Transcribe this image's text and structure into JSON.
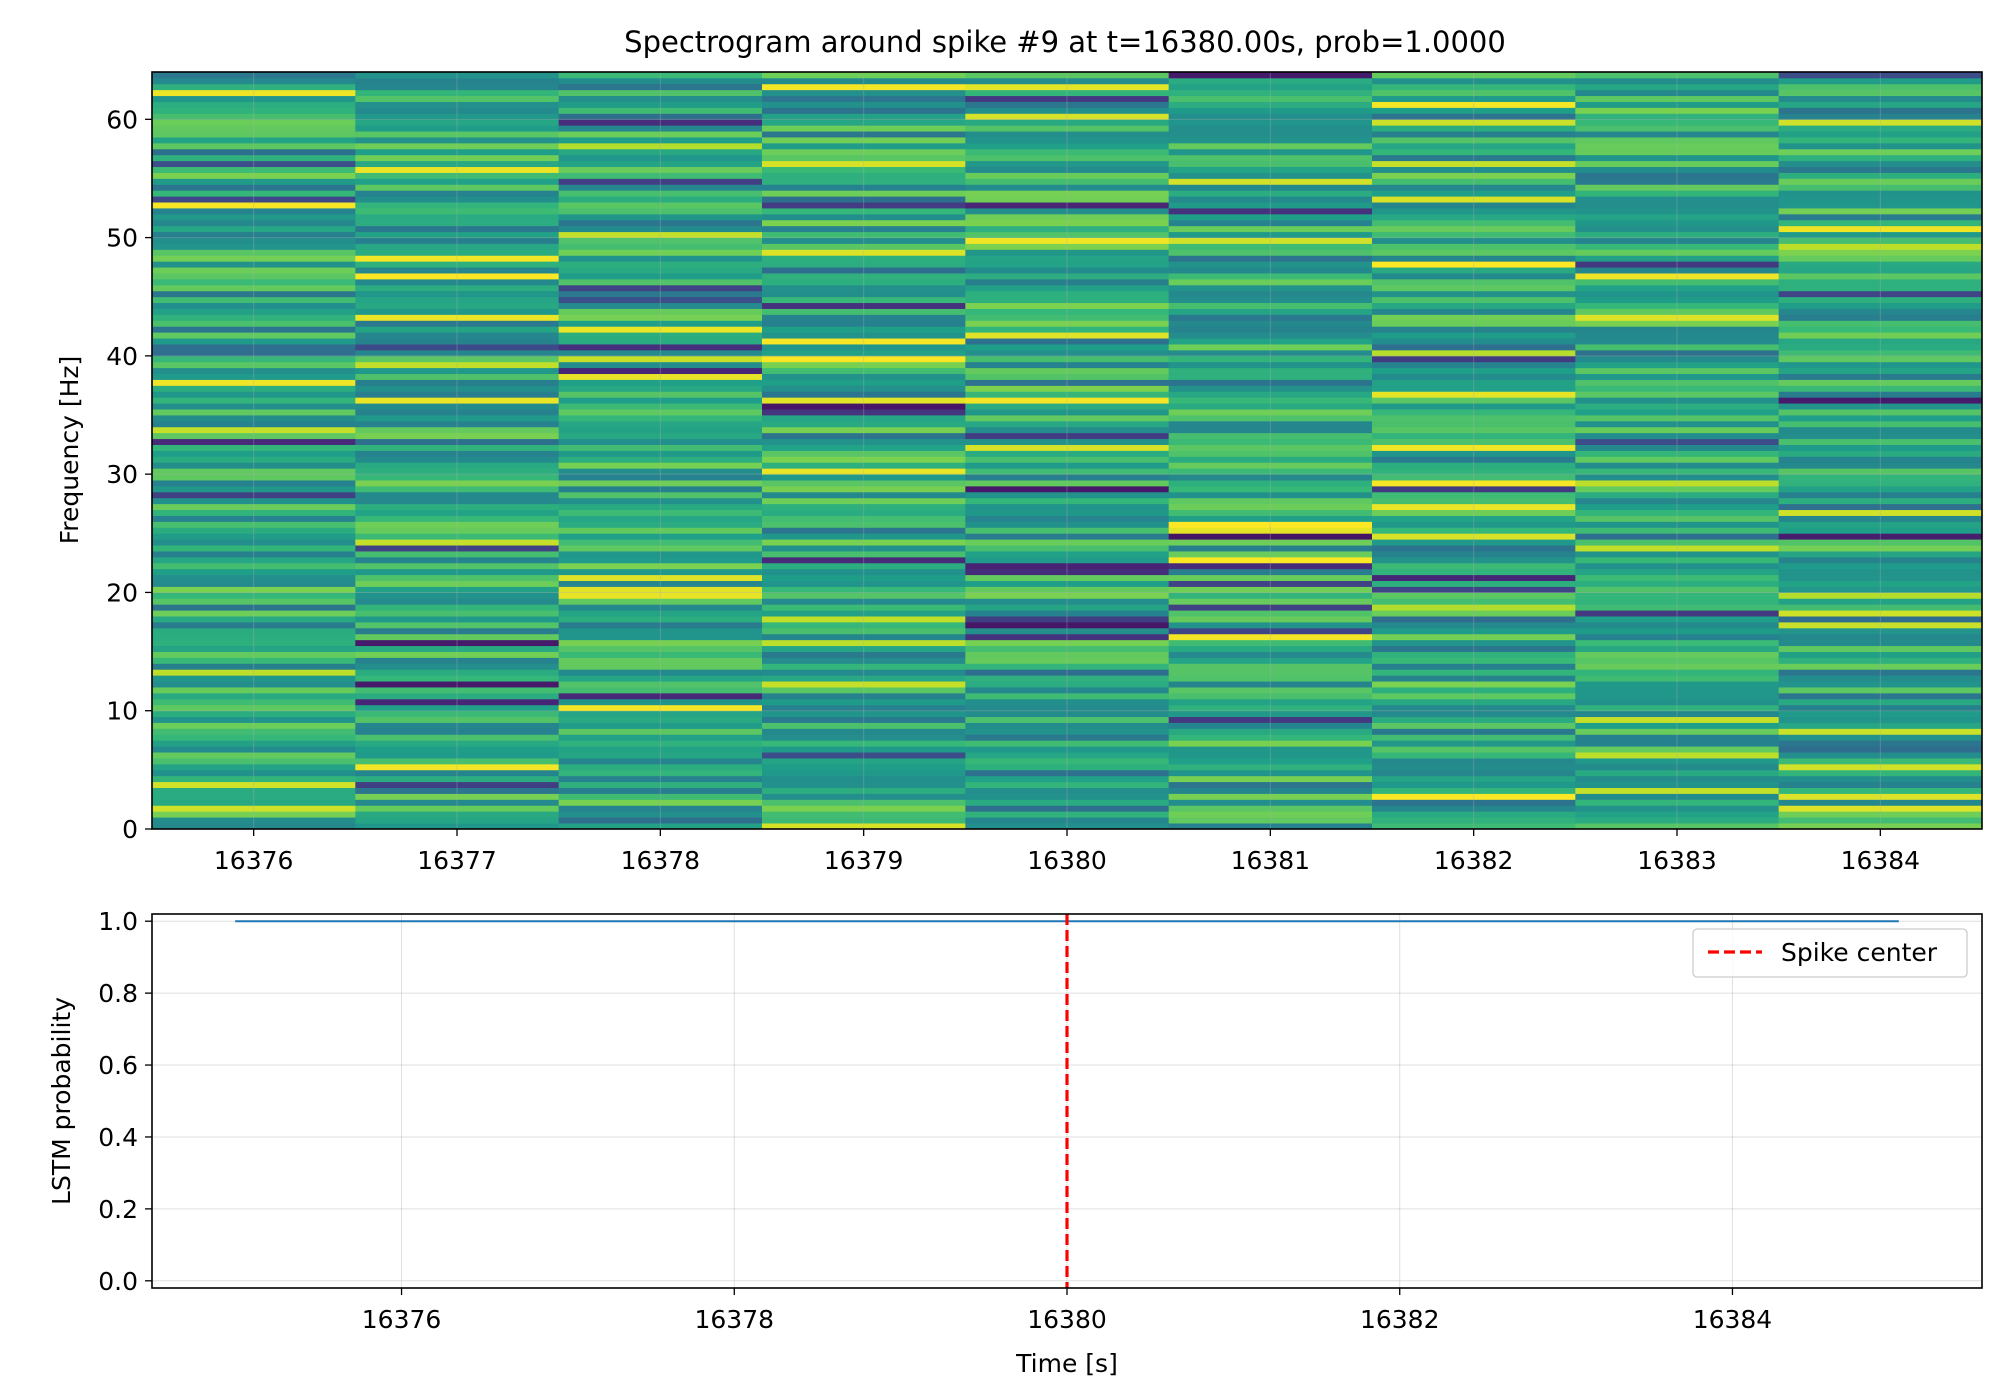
{
  "figure_title": "Spectrogram around spike #9 at t=16380.00s, prob=1.0000",
  "chart_data": [
    {
      "type": "heatmap",
      "ylabel": "Frequency [Hz]",
      "xlim": [
        16375.5,
        16384.5
      ],
      "ylim": [
        0,
        64
      ],
      "x_ticks": [
        "16376",
        "16377",
        "16378",
        "16379",
        "16380",
        "16381",
        "16382",
        "16383",
        "16384"
      ],
      "x_tick_values": [
        16376,
        16377,
        16378,
        16379,
        16380,
        16381,
        16382,
        16383,
        16384
      ],
      "y_ticks": [
        "0",
        "10",
        "20",
        "30",
        "40",
        "50",
        "60"
      ],
      "y_tick_values": [
        0,
        10,
        20,
        30,
        40,
        50,
        60
      ],
      "time_bins": [
        16376,
        16377,
        16378,
        16379,
        16380,
        16381,
        16382,
        16383,
        16384
      ],
      "frequency_bin_width_hz": 0.5,
      "colormap": "viridis",
      "grid": true
    },
    {
      "type": "line",
      "xlabel": "Time [s]",
      "ylabel": "LSTM probability",
      "xlim": [
        16374.5,
        16385.5
      ],
      "ylim": [
        -0.02,
        1.02
      ],
      "x_ticks": [
        "16376",
        "16378",
        "16380",
        "16382",
        "16384"
      ],
      "x_tick_values": [
        16376,
        16378,
        16380,
        16382,
        16384
      ],
      "y_ticks": [
        "0.0",
        "0.2",
        "0.4",
        "0.6",
        "0.8",
        "1.0"
      ],
      "y_tick_values": [
        0,
        0.2,
        0.4,
        0.6,
        0.8,
        1.0
      ],
      "series": [
        {
          "x": [
            16375,
            16385
          ],
          "y": [
            1.0,
            1.0
          ],
          "color": "#1f77b4"
        }
      ],
      "vline": {
        "name": "Spike center",
        "x": 16380,
        "color": "#ff0000",
        "style": "dashed"
      },
      "legend": {
        "position": "top-right",
        "entries": [
          "Spike center"
        ]
      },
      "grid": true
    }
  ]
}
